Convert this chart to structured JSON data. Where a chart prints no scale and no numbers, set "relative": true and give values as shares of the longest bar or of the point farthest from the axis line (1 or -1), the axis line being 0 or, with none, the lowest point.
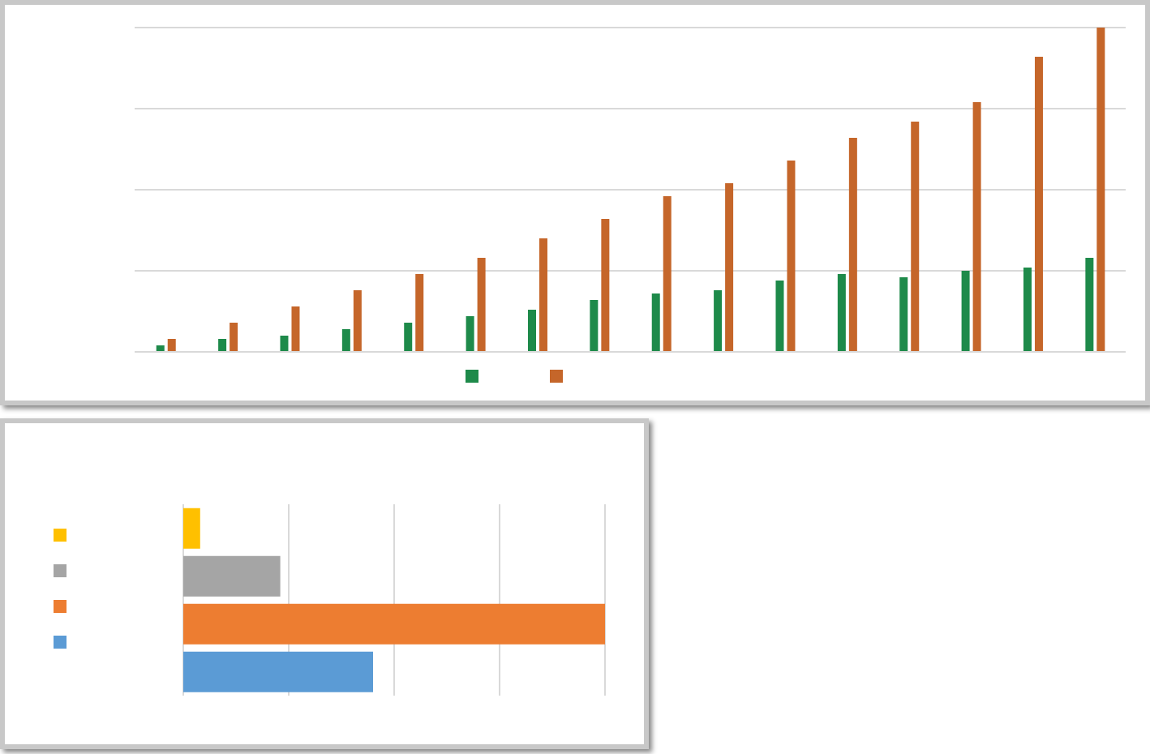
{
  "chart_data": [
    {
      "type": "bar",
      "relative": true,
      "categories": [
        null,
        null,
        null,
        null,
        null,
        null,
        null,
        null,
        null,
        null,
        null,
        null,
        null,
        null,
        null,
        null
      ],
      "series": [
        {
          "color": "#1e8a4a",
          "values": [
            0.02,
            0.04,
            0.05,
            0.07,
            0.09,
            0.11,
            0.13,
            0.16,
            0.18,
            0.19,
            0.22,
            0.24,
            0.23,
            0.25,
            0.26,
            0.29
          ]
        },
        {
          "color": "#c5662a",
          "values": [
            0.04,
            0.09,
            0.14,
            0.19,
            0.24,
            0.29,
            0.35,
            0.41,
            0.48,
            0.52,
            0.59,
            0.66,
            0.71,
            0.77,
            0.91,
            1
          ]
        }
      ],
      "grid": "y"
    },
    {
      "type": "bar",
      "orientation": "horizontal",
      "relative": true,
      "categories": [
        null,
        null,
        null,
        null
      ],
      "values": [
        0.04,
        0.23,
        1,
        0.45
      ],
      "colors": [
        "#ffc000",
        "#a5a5a5",
        "#ed7d31",
        "#5b9bd5"
      ],
      "grid": "x"
    }
  ]
}
